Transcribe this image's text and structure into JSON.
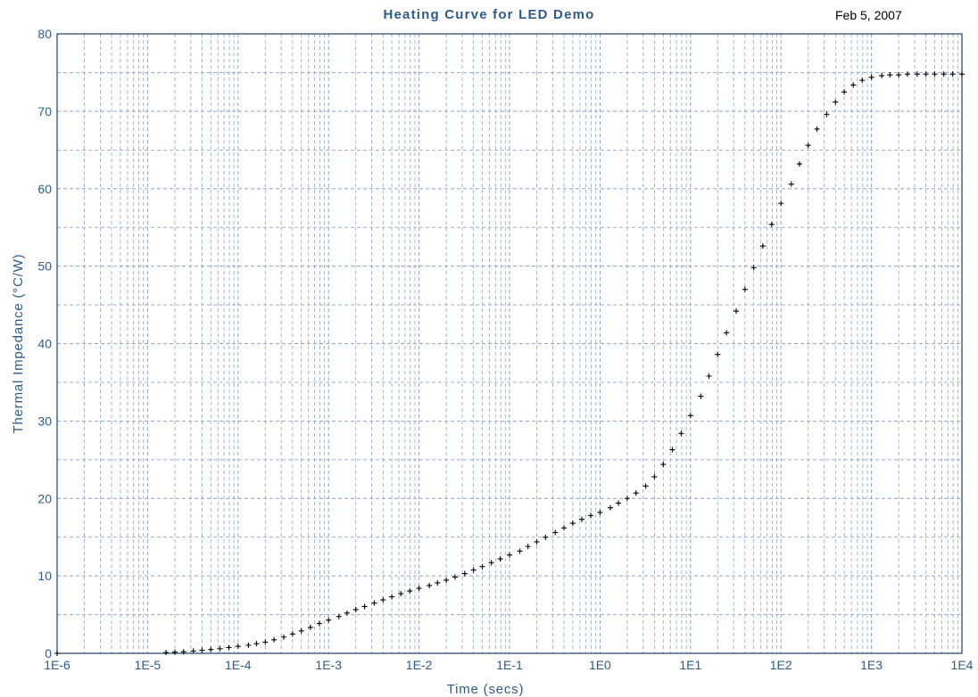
{
  "chart": {
    "title": "Heating Curve for LED Demo",
    "date": "Feb 5, 2007"
  },
  "colors": {
    "axis_text": "#2e5b8a",
    "grid": "#8fa4c2",
    "frame": "#1f3f6b",
    "marker": "#000000"
  },
  "chart_data": {
    "type": "scatter",
    "title": "Heating Curve for LED Demo",
    "xlabel": "Time (secs)",
    "ylabel": "Thermal Impedance (°C/W)",
    "xscale": "log",
    "xlim": [
      "1E-6",
      "1E4"
    ],
    "ylim": [
      0,
      80
    ],
    "xticks": [
      "1E-6",
      "1E-5",
      "1E-4",
      "1E-3",
      "1E-2",
      "1E-1",
      "1E0",
      "1E1",
      "1E2",
      "1E3",
      "1E4"
    ],
    "yticks": [
      0,
      10,
      20,
      30,
      40,
      50,
      60,
      70,
      80
    ],
    "grid": true,
    "marker": "+",
    "series": [
      {
        "x": [
          "1E-6",
          "1.6E-5",
          "2E-5",
          "2.5E-5",
          "3.2E-5",
          "4E-5",
          "5E-5",
          "6.3E-5",
          "7.9E-5",
          "1E-4",
          "1.3E-4",
          "1.6E-4",
          "2E-4",
          "2.5E-4",
          "3.2E-4",
          "4E-4",
          "5E-4",
          "6.3E-4",
          "7.9E-4",
          "1E-3",
          "1.3E-3",
          "1.6E-3",
          "2E-3",
          "2.5E-3",
          "3.2E-3",
          "4E-3",
          "5E-3",
          "6.3E-3",
          "7.9E-3",
          "1E-2",
          "1.3E-2",
          "1.6E-2",
          "2E-2",
          "2.5E-2",
          "3.2E-2",
          "4E-2",
          "5E-2",
          "6.3E-2",
          "7.9E-2",
          "1E-1",
          "1.3E-1",
          "1.6E-1",
          "2E-1",
          "2.5E-1",
          "3.2E-1",
          "4E-1",
          "5E-1",
          "6.3E-1",
          "7.9E-1",
          "1E0",
          "1.3E0",
          "1.6E0",
          "2E0",
          "2.5E0",
          "3.2E0",
          "4E0",
          "5E0",
          "6.3E0",
          "7.9E0",
          "1E1",
          "1.3E1",
          "1.6E1",
          "2E1",
          "2.5E1",
          "3.2E1",
          "4E1",
          "5E1",
          "6.3E1",
          "7.9E1",
          "1E2",
          "1.3E2",
          "1.6E2",
          "2E2",
          "2.5E2",
          "3.2E2",
          "4E2",
          "5E2",
          "6.3E2",
          "7.9E2",
          "1E3",
          "1.3E3",
          "1.6E3",
          "2E3",
          "2.5E3",
          "3.2E3",
          "4E3",
          "5E3",
          "6.3E3",
          "7.9E3",
          "1E4"
        ],
        "y": [
          0,
          0.1,
          0.15,
          0.2,
          0.3,
          0.4,
          0.5,
          0.6,
          0.75,
          0.9,
          1.05,
          1.25,
          1.45,
          1.75,
          2.1,
          2.5,
          2.9,
          3.35,
          3.85,
          4.3,
          4.75,
          5.2,
          5.65,
          6.05,
          6.5,
          6.9,
          7.3,
          7.7,
          8.05,
          8.4,
          8.75,
          9.1,
          9.45,
          9.85,
          10.3,
          10.75,
          11.2,
          11.7,
          12.2,
          12.7,
          13.2,
          13.8,
          14.4,
          15.0,
          15.6,
          16.2,
          16.8,
          17.3,
          17.8,
          18.2,
          18.8,
          19.4,
          20.0,
          20.7,
          21.6,
          22.8,
          24.4,
          26.3,
          28.4,
          30.7,
          33.2,
          35.8,
          38.6,
          41.4,
          44.2,
          47.0,
          49.8,
          52.6,
          55.4,
          58.1,
          60.6,
          63.2,
          65.6,
          67.7,
          69.6,
          71.2,
          72.5,
          73.4,
          74.0,
          74.4,
          74.6,
          74.7,
          74.7,
          74.8,
          74.8,
          74.8,
          74.8,
          74.8,
          74.8,
          74.8
        ]
      }
    ]
  }
}
